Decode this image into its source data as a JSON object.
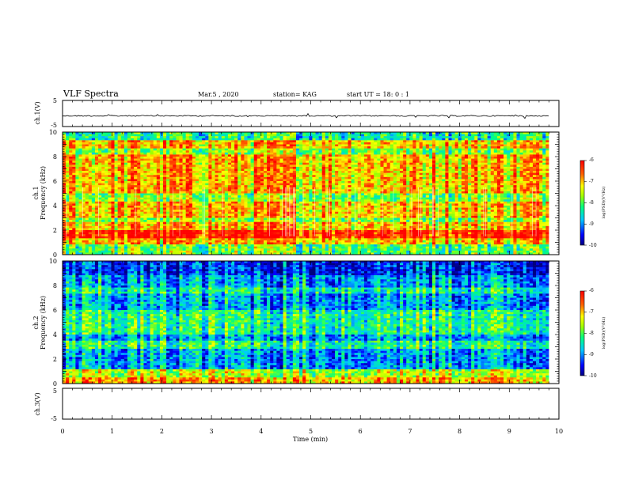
{
  "header": {
    "title": "VLF Spectra",
    "date": "Mar.5 , 2020",
    "station": "station= KAG",
    "start": "start UT = 18: 0 : 1"
  },
  "chart_data": [
    {
      "type": "line",
      "name": "ch1-waveform",
      "ylabel": "ch.1(V)",
      "ylim": [
        -5,
        5
      ],
      "yticks": [
        "5",
        "-5"
      ],
      "xlim": [
        0,
        10
      ],
      "trace_extent_min": [
        0,
        9.8
      ]
    },
    {
      "type": "heatmap",
      "name": "ch1-spectrogram",
      "ylabel_line1": "ch.1",
      "ylabel_line2": "Frequency (kHz)",
      "ylim": [
        0,
        10
      ],
      "yticks": [
        "0",
        "2",
        "4",
        "6",
        "8",
        "10"
      ],
      "xlim": [
        0,
        10
      ],
      "colorbar": {
        "ticks": [
          "-6",
          "-7",
          "-8",
          "-9",
          "-10"
        ],
        "label": "log(PSD)(V²/Hz)",
        "range": [
          -10,
          -6
        ]
      }
    },
    {
      "type": "heatmap",
      "name": "ch2-spectrogram",
      "ylabel_line1": "ch.2",
      "ylabel_line2": "Frequency (kHz)",
      "ylim": [
        0,
        10
      ],
      "yticks": [
        "0",
        "2",
        "4",
        "6",
        "8",
        "10"
      ],
      "xlim": [
        0,
        10
      ],
      "colorbar": {
        "ticks": [
          "-6",
          "-7",
          "-8",
          "-9",
          "-10"
        ],
        "label": "log(PSD)(V²/Hz)",
        "range": [
          -10,
          -6
        ]
      }
    },
    {
      "type": "line",
      "name": "ch3-waveform",
      "ylabel": "ch.3(V)",
      "ylim": [
        -5,
        5
      ],
      "yticks": [
        "5",
        "-5"
      ],
      "xlim": [
        0,
        10
      ],
      "xlabel": "Time (min)",
      "xticks": [
        "0",
        "1",
        "2",
        "3",
        "4",
        "5",
        "6",
        "7",
        "8",
        "9",
        "10"
      ]
    }
  ]
}
